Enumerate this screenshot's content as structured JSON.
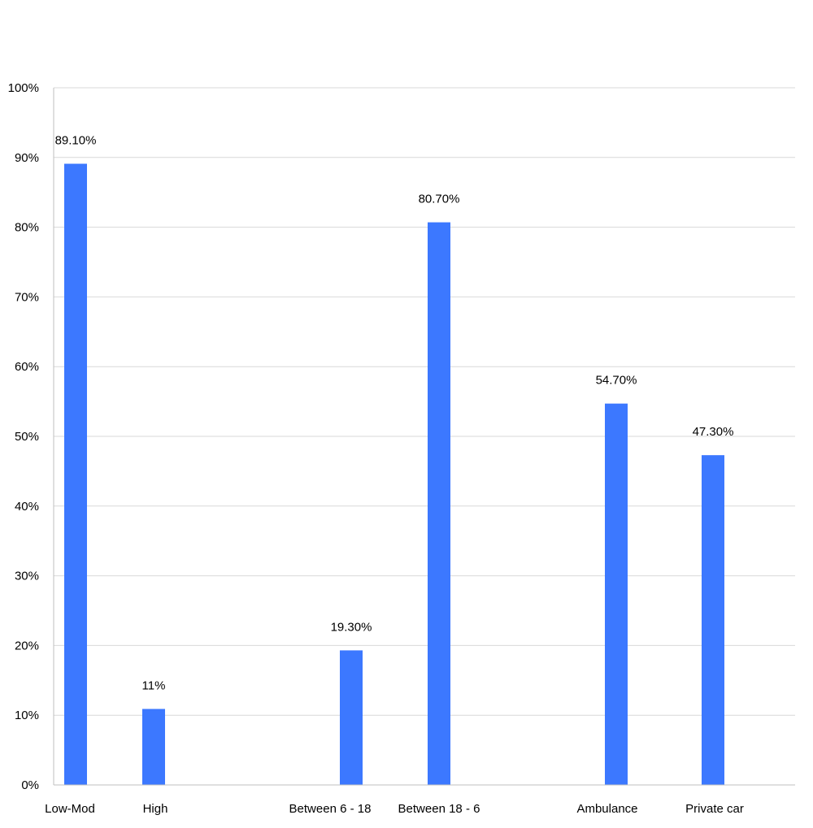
{
  "chart_data": {
    "type": "bar",
    "categories": [
      "Low-Mod",
      "High",
      "Between 6 - 18",
      "Between 18 - 6",
      "Ambulance",
      "Private car"
    ],
    "values": [
      89.1,
      10.9,
      19.3,
      80.7,
      54.7,
      47.3
    ],
    "data_labels": [
      "89.10%",
      "11%",
      "19.30%",
      "80.70%",
      "54.70%",
      "47.30%"
    ],
    "y_ticks": [
      "0%",
      "10%",
      "20%",
      "30%",
      "40%",
      "50%",
      "60%",
      "70%",
      "80%",
      "90%",
      "100%"
    ],
    "ylim": [
      0,
      100
    ],
    "grid": true,
    "legend": "none",
    "bar_color": "#3c78ff",
    "grid_color": "#d9d9d9",
    "axis_color": "#bfbfbf"
  }
}
